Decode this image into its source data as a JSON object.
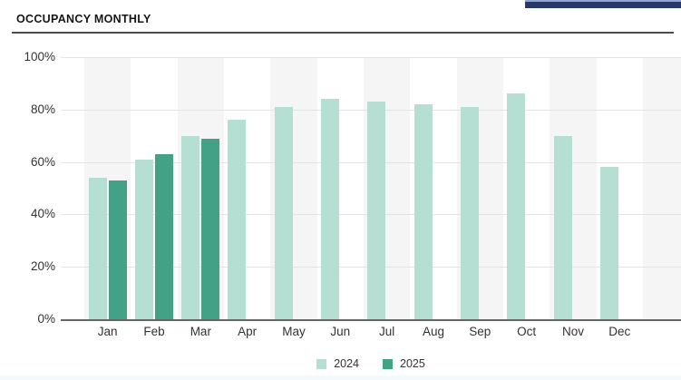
{
  "header": {
    "title": "OCCUPANCY MONTHLY"
  },
  "chart_data": {
    "type": "bar",
    "title": "OCCUPANCY MONTHLY",
    "categories": [
      "Jan",
      "Feb",
      "Mar",
      "Apr",
      "May",
      "Jun",
      "Jul",
      "Aug",
      "Sep",
      "Oct",
      "Nov",
      "Dec"
    ],
    "series": [
      {
        "name": "2024",
        "color": "#b4dfd2",
        "values": [
          54,
          61,
          70,
          76,
          81,
          84,
          83,
          82,
          81,
          86,
          70,
          58
        ]
      },
      {
        "name": "2025",
        "color": "#43a185",
        "values": [
          53,
          63,
          69,
          null,
          null,
          null,
          null,
          null,
          null,
          null,
          null,
          null
        ]
      }
    ],
    "y_ticks": [
      "100%",
      "80%",
      "60%",
      "40%",
      "20%",
      "0%"
    ],
    "ylim": [
      0,
      100
    ],
    "y_unit": "%",
    "grid": true,
    "legend_position": "bottom",
    "colors": {
      "band": "#f5f5f6",
      "gridline": "#e4e4e4",
      "axis_line": "#666666",
      "tick_text": "#333333",
      "title_text": "#161616",
      "topbar_navy": "#27396b"
    }
  }
}
